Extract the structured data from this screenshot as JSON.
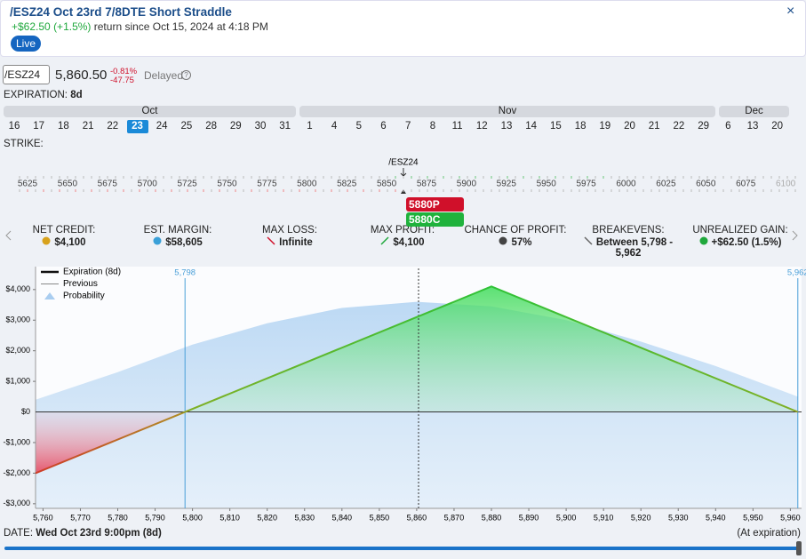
{
  "header": {
    "title": "/ESZ24 Oct 23rd 7/8DTE Short Straddle",
    "return_amount": "+$62.50",
    "return_pct": "(+1.5%)",
    "return_text": "return since Oct 15, 2024 at 4:18 PM",
    "badge": "Live",
    "close": "×"
  },
  "quote": {
    "symbol": "/ESZ24",
    "price": "5,860.50",
    "change_pct": "-0.81%",
    "change": "-47.75",
    "status": "Delayed",
    "help": "?"
  },
  "expiration": {
    "label": "EXPIRATION:",
    "value": "8d",
    "selected": "23",
    "months": [
      {
        "name": "Oct",
        "days": [
          "16",
          "17",
          "18",
          "21",
          "22",
          "23",
          "24",
          "25",
          "28",
          "29",
          "30",
          "31"
        ]
      },
      {
        "name": "Nov",
        "days": [
          "1",
          "4",
          "5",
          "6",
          "7",
          "8",
          "11",
          "12",
          "13",
          "14",
          "15",
          "18",
          "19",
          "20",
          "21",
          "22",
          "29"
        ]
      },
      {
        "name": "Dec",
        "days": [
          "6",
          "13",
          "20"
        ]
      }
    ]
  },
  "strike": {
    "label": "STRIKE:",
    "marker": "/ESZ24",
    "strikes": [
      5625,
      5650,
      5675,
      5700,
      5725,
      5750,
      5775,
      5800,
      5825,
      5850,
      5875,
      5900,
      5925,
      5950,
      5975,
      6000,
      6025,
      6050,
      6075,
      6100
    ],
    "put_tag": "5880P",
    "call_tag": "5880C"
  },
  "stats": [
    {
      "label": "NET CREDIT:",
      "value": "$4,100"
    },
    {
      "label": "EST. MARGIN:",
      "value": "$58,605"
    },
    {
      "label": "MAX LOSS:",
      "value": "Infinite"
    },
    {
      "label": "MAX PROFIT:",
      "value": "$4,100"
    },
    {
      "label": "CHANCE OF PROFIT:",
      "value": "57%"
    },
    {
      "label": "BREAKEVENS:",
      "value": "Between 5,798 - 5,962"
    },
    {
      "label": "UNREALIZED GAIN:",
      "value": "+$62.50 (1.5%)"
    }
  ],
  "chart_data": {
    "type": "line",
    "xlim": [
      5758,
      5963
    ],
    "ylim": [
      -3150,
      4750
    ],
    "xticks": [
      {
        "value": 5760,
        "label": "5,760"
      },
      {
        "value": 5770,
        "label": "5,770"
      },
      {
        "value": 5780,
        "label": "5,780"
      },
      {
        "value": 5790,
        "label": "5,790"
      },
      {
        "value": 5800,
        "label": "5,800"
      },
      {
        "value": 5810,
        "label": "5,810"
      },
      {
        "value": 5820,
        "label": "5,820"
      },
      {
        "value": 5830,
        "label": "5,830"
      },
      {
        "value": 5840,
        "label": "5,840"
      },
      {
        "value": 5850,
        "label": "5,850"
      },
      {
        "value": 5860,
        "label": "5,860"
      },
      {
        "value": 5870,
        "label": "5,870"
      },
      {
        "value": 5880,
        "label": "5,880"
      },
      {
        "value": 5890,
        "label": "5,890"
      },
      {
        "value": 5900,
        "label": "5,900"
      },
      {
        "value": 5910,
        "label": "5,910"
      },
      {
        "value": 5920,
        "label": "5,920"
      },
      {
        "value": 5930,
        "label": "5,930"
      },
      {
        "value": 5940,
        "label": "5,940"
      },
      {
        "value": 5950,
        "label": "5,950"
      },
      {
        "value": 5960,
        "label": "5,960"
      }
    ],
    "yticks": [
      {
        "value": 4000,
        "label": "$4,000"
      },
      {
        "value": 3000,
        "label": "$3,000"
      },
      {
        "value": 2000,
        "label": "$2,000"
      },
      {
        "value": 1000,
        "label": "$1,000"
      },
      {
        "value": 0,
        "label": "$0"
      },
      {
        "value": -1000,
        "label": "-$1,000"
      },
      {
        "value": -2000,
        "label": "-$2,000"
      },
      {
        "value": -3000,
        "label": "-$3,000"
      }
    ],
    "series": [
      {
        "name": "Expiration (8d)",
        "color": "#22c53a",
        "x": [
          5758,
          5798,
          5880,
          5962
        ],
        "values": [
          -2000,
          0,
          4100,
          0
        ]
      },
      {
        "name": "Previous",
        "color": "#888888"
      },
      {
        "name": "Probability",
        "color": "#a9cdf0",
        "x": [
          5758,
          5780,
          5800,
          5820,
          5840,
          5860,
          5880,
          5900,
          5920,
          5940,
          5962
        ],
        "values": [
          400,
          1300,
          2200,
          2900,
          3400,
          3600,
          3450,
          3000,
          2300,
          1500,
          500
        ]
      }
    ],
    "breakevens": [
      {
        "value": 5798,
        "label": "5,798"
      },
      {
        "value": 5962,
        "label": "5,962"
      }
    ],
    "current": 5860.5
  },
  "footer": {
    "date_label": "DATE:",
    "date": "Wed Oct 23rd 9:00pm (8d)",
    "note": "(At expiration)"
  }
}
